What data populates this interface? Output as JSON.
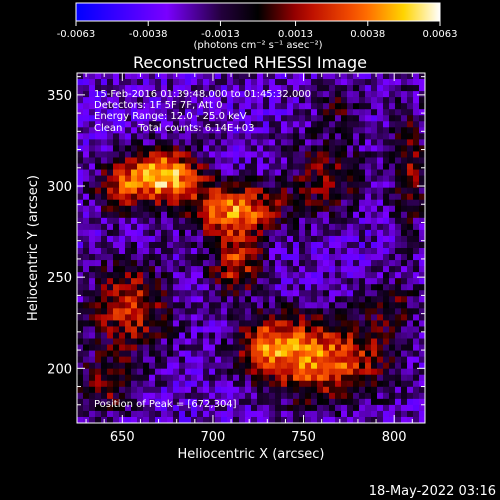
{
  "chart_data": {
    "type": "heatmap",
    "title": "Reconstructed RHESSI Image",
    "xlabel": "Heliocentric X (arcsec)",
    "ylabel": "Heliocentric Y (arcsec)",
    "xlim": [
      625,
      817
    ],
    "ylim": [
      170,
      362
    ],
    "x_ticks": [
      650,
      700,
      750,
      800
    ],
    "y_ticks": [
      200,
      250,
      300,
      350
    ],
    "colorbar": {
      "range": [
        -0.0063,
        0.0063
      ],
      "tick_values": [
        -0.0063,
        -0.0038,
        -0.0013,
        0.0013,
        0.0038,
        0.0063
      ],
      "tick_labels": [
        "-0.0063",
        "-0.0038",
        "-0.0013",
        "0.0013",
        "0.0038",
        "0.0063"
      ],
      "unit_label": "(photons cm⁻² s⁻¹ asec⁻²)",
      "colors": [
        "#0000ff",
        "#7a00ff",
        "#000000",
        "#b00000",
        "#ff5a00",
        "#ffd400",
        "#ffffff"
      ]
    },
    "annotations": {
      "time_range": "15-Feb-2016 01:39:48.000 to 01:45:32.000",
      "detectors": "Detectors: 1F 5F 7F, Att 0",
      "energy": "Energy Range: 12.0 - 25.0 keV",
      "clean": "Clean     Total counts: 6.14E+03",
      "peak": "Position of Peak = [672,304]"
    },
    "peak_position": [
      672,
      304
    ],
    "sources": [
      {
        "x": 673,
        "y": 306,
        "amp": 0.0063,
        "sx": 14,
        "sy": 10
      },
      {
        "x": 648,
        "y": 298,
        "amp": 0.0032,
        "sx": 10,
        "sy": 9
      },
      {
        "x": 712,
        "y": 287,
        "amp": 0.005,
        "sx": 18,
        "sy": 10
      },
      {
        "x": 713,
        "y": 258,
        "amp": 0.004,
        "sx": 10,
        "sy": 12
      },
      {
        "x": 654,
        "y": 233,
        "amp": 0.0036,
        "sx": 16,
        "sy": 18
      },
      {
        "x": 760,
        "y": 205,
        "amp": 0.005,
        "sx": 25,
        "sy": 16
      },
      {
        "x": 730,
        "y": 215,
        "amp": 0.003,
        "sx": 12,
        "sy": 10
      },
      {
        "x": 762,
        "y": 305,
        "amp": 0.0024,
        "sx": 16,
        "sy": 16
      },
      {
        "x": 808,
        "y": 310,
        "amp": 0.0026,
        "sx": 7,
        "sy": 26
      },
      {
        "x": 770,
        "y": 345,
        "amp": 0.0018,
        "sx": 10,
        "sy": 8
      },
      {
        "x": 640,
        "y": 190,
        "amp": 0.0024,
        "sx": 12,
        "sy": 12
      },
      {
        "x": 800,
        "y": 235,
        "amp": 0.0018,
        "sx": 10,
        "sy": 12
      }
    ],
    "background_level": -0.0026
  },
  "footer": {
    "date": "18-May-2022 03:16"
  }
}
